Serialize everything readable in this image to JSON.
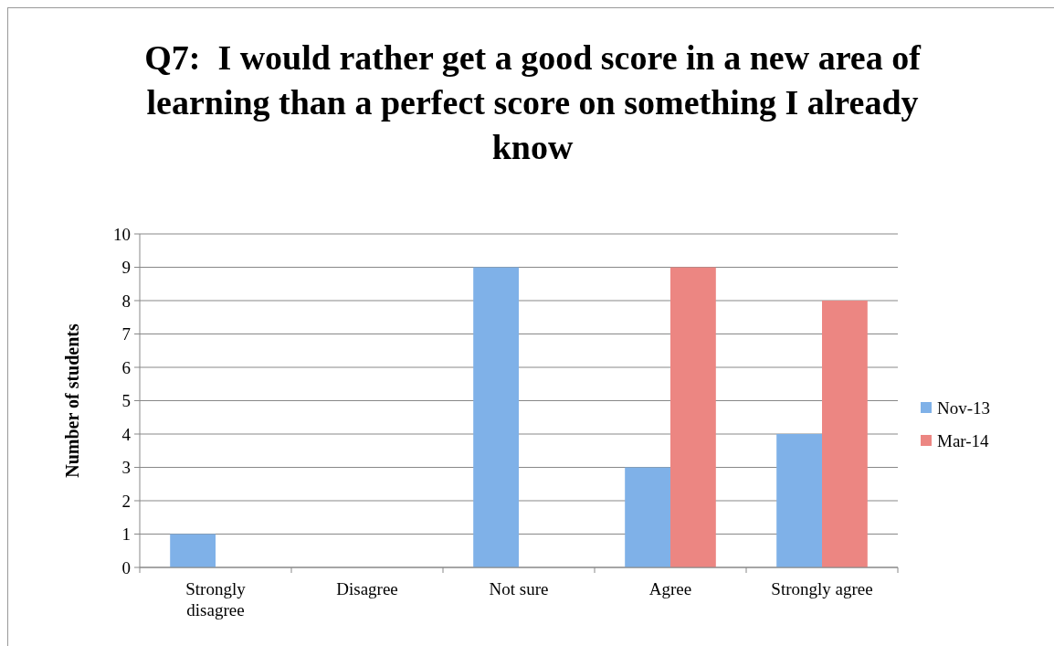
{
  "chart_data": {
    "type": "bar",
    "title": "Q7:  I would rather get a good score in a new area of learning than a perfect score on something I already know",
    "ylabel": "Number of students",
    "categories": [
      "Strongly disagree",
      "Disagree",
      "Not sure",
      "Agree",
      "Strongly agree"
    ],
    "series": [
      {
        "name": "Nov-13",
        "color": "#7fb1e8",
        "values": [
          1,
          0,
          9,
          3,
          4
        ]
      },
      {
        "name": "Mar-14",
        "color": "#ec8682",
        "values": [
          0,
          0,
          0,
          9,
          8
        ]
      }
    ],
    "ylim": [
      0,
      10
    ],
    "yticks": [
      0,
      1,
      2,
      3,
      4,
      5,
      6,
      7,
      8,
      9,
      10
    ],
    "grid": "y",
    "legend": "right"
  }
}
